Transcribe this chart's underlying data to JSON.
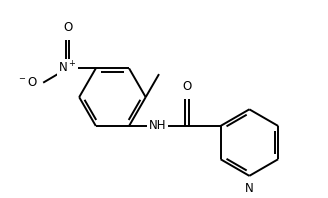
{
  "background_color": "#ffffff",
  "line_color": "#000000",
  "line_width": 1.4,
  "font_size": 8.5,
  "figsize": [
    3.28,
    1.98
  ],
  "dpi": 100,
  "xlim": [
    0.0,
    9.5
  ],
  "ylim": [
    0.0,
    5.8
  ]
}
